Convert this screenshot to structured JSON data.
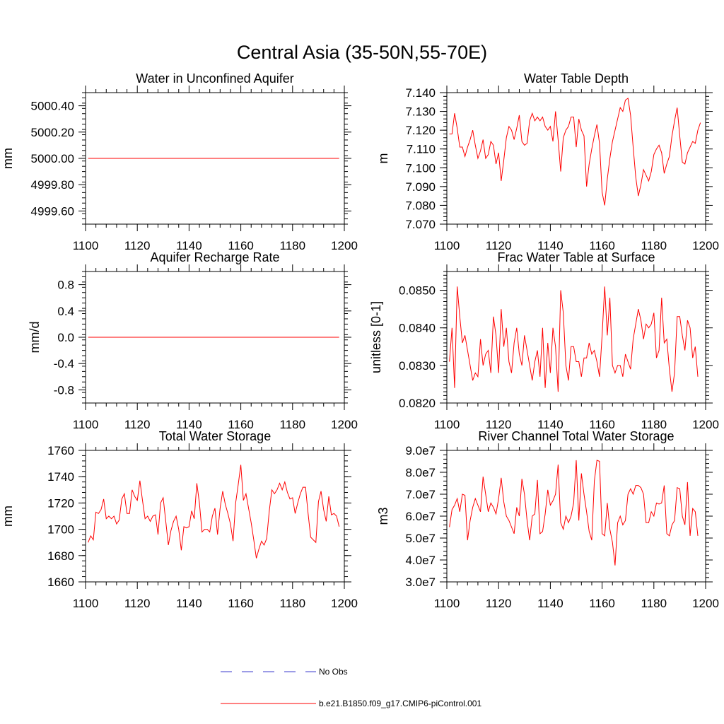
{
  "figure_title": "Central Asia (35-50N,55-70E)",
  "colors": {
    "model": "#ff0000",
    "obs": "#3a3acc",
    "frame": "#000000"
  },
  "legend": [
    {
      "label": "No Obs",
      "style": "dashed",
      "color": "#3a3acc"
    },
    {
      "label": "b.e21.B1850.f09_g17.CMIP6-piControl.001",
      "style": "solid",
      "color": "#ff0000"
    }
  ],
  "chart_data": [
    {
      "type": "line",
      "title": "Water in Unconfined Aquifer",
      "ylabel": "mm",
      "xlim": [
        1100,
        1200
      ],
      "ylim": [
        4999.5,
        5000.5
      ],
      "xticks": [
        1100,
        1120,
        1140,
        1160,
        1180,
        1200
      ],
      "xticklabels": [
        "1100",
        "1120",
        "1140",
        "1160",
        "1180",
        "1200"
      ],
      "yticks": [
        4999.6,
        4999.8,
        5000.0,
        5000.2,
        5000.4
      ],
      "yticklabels": [
        "4999.60",
        "4999.80",
        "5000.00",
        "5000.20",
        "5000.40"
      ],
      "yminor_step": 0.04,
      "x_start": 1101,
      "values": [
        5000.0,
        5000.0
      ],
      "x": [
        1101,
        1198
      ]
    },
    {
      "type": "line",
      "title": "Water Table Depth",
      "ylabel": "m",
      "xlim": [
        1100,
        1200
      ],
      "ylim": [
        7.07,
        7.14
      ],
      "xticks": [
        1100,
        1120,
        1140,
        1160,
        1180,
        1200
      ],
      "xticklabels": [
        "1100",
        "1120",
        "1140",
        "1160",
        "1180",
        "1200"
      ],
      "yticks": [
        7.07,
        7.08,
        7.09,
        7.1,
        7.11,
        7.12,
        7.13,
        7.14
      ],
      "yticklabels": [
        "7.070",
        "7.080",
        "7.090",
        "7.100",
        "7.110",
        "7.120",
        "7.130",
        "7.140"
      ],
      "yminor_step": 0.002,
      "x_start": 1101,
      "values": [
        7.118,
        7.118,
        7.129,
        7.121,
        7.111,
        7.111,
        7.106,
        7.111,
        7.115,
        7.12,
        7.112,
        7.105,
        7.109,
        7.115,
        7.105,
        7.107,
        7.114,
        7.112,
        7.102,
        7.108,
        7.093,
        7.104,
        7.116,
        7.122,
        7.12,
        7.115,
        7.121,
        7.128,
        7.114,
        7.112,
        7.113,
        7.125,
        7.129,
        7.125,
        7.127,
        7.125,
        7.127,
        7.122,
        7.12,
        7.122,
        7.114,
        7.13,
        7.115,
        7.098,
        7.116,
        7.12,
        7.122,
        7.127,
        7.127,
        7.111,
        7.126,
        7.12,
        7.117,
        7.09,
        7.102,
        7.11,
        7.117,
        7.123,
        7.113,
        7.087,
        7.08,
        7.094,
        7.105,
        7.114,
        7.12,
        7.126,
        7.132,
        7.13,
        7.136,
        7.137,
        7.128,
        7.111,
        7.095,
        7.085,
        7.091,
        7.099,
        7.096,
        7.093,
        7.098,
        7.107,
        7.11,
        7.112,
        7.108,
        7.097,
        7.102,
        7.106,
        7.117,
        7.125,
        7.132,
        7.117,
        7.103,
        7.102,
        7.108,
        7.111,
        7.114,
        7.113,
        7.12,
        7.124
      ]
    },
    {
      "type": "line",
      "title": "Aquifer Recharge Rate",
      "ylabel": "mm/d",
      "xlim": [
        1100,
        1200
      ],
      "ylim": [
        -1.0,
        1.0
      ],
      "xticks": [
        1100,
        1120,
        1140,
        1160,
        1180,
        1200
      ],
      "xticklabels": [
        "1100",
        "1120",
        "1140",
        "1160",
        "1180",
        "1200"
      ],
      "yticks": [
        -0.8,
        -0.4,
        0.0,
        0.4,
        0.8
      ],
      "yticklabels": [
        "-0.8",
        "-0.4",
        "0.0",
        "0.4",
        "0.8"
      ],
      "yminor_step": 0.08,
      "values": [
        0.0,
        0.0
      ],
      "x": [
        1101,
        1198
      ]
    },
    {
      "type": "line",
      "title": "Frac Water Table at Surface",
      "ylabel": "unitless [0-1]",
      "xlim": [
        1100,
        1200
      ],
      "ylim": [
        0.082,
        0.0855
      ],
      "xticks": [
        1100,
        1120,
        1140,
        1160,
        1180,
        1200
      ],
      "xticklabels": [
        "1100",
        "1120",
        "1140",
        "1160",
        "1180",
        "1200"
      ],
      "yticks": [
        0.082,
        0.083,
        0.084,
        0.085
      ],
      "yticklabels": [
        "0.0820",
        "0.0830",
        "0.0840",
        "0.0850"
      ],
      "yminor_step": 0.0001,
      "x_start": 1101,
      "values": [
        0.0831,
        0.084,
        0.0824,
        0.0851,
        0.0843,
        0.0836,
        0.0838,
        0.0834,
        0.083,
        0.0826,
        0.0828,
        0.0827,
        0.0837,
        0.083,
        0.0833,
        0.0834,
        0.0828,
        0.0843,
        0.0838,
        0.0828,
        0.0845,
        0.0835,
        0.084,
        0.0831,
        0.0828,
        0.0836,
        0.084,
        0.0833,
        0.083,
        0.0838,
        0.0834,
        0.083,
        0.0826,
        0.0831,
        0.0834,
        0.0827,
        0.084,
        0.0824,
        0.0836,
        0.0828,
        0.084,
        0.0835,
        0.0823,
        0.085,
        0.0844,
        0.083,
        0.0826,
        0.0835,
        0.0835,
        0.0831,
        0.0831,
        0.0827,
        0.0832,
        0.0832,
        0.0836,
        0.0833,
        0.0834,
        0.0831,
        0.0827,
        0.0838,
        0.0851,
        0.0838,
        0.0848,
        0.083,
        0.0828,
        0.083,
        0.083,
        0.0827,
        0.0833,
        0.0831,
        0.0829,
        0.0837,
        0.0841,
        0.0845,
        0.0842,
        0.0837,
        0.0841,
        0.084,
        0.0841,
        0.0844,
        0.0832,
        0.0834,
        0.0848,
        0.0836,
        0.0837,
        0.0829,
        0.0823,
        0.0828,
        0.0843,
        0.0843,
        0.0838,
        0.0834,
        0.0842,
        0.084,
        0.0832,
        0.0835,
        0.0827
      ]
    },
    {
      "type": "line",
      "title": "Total Water Storage",
      "ylabel": "mm",
      "xlim": [
        1100,
        1200
      ],
      "ylim": [
        1660,
        1760
      ],
      "xticks": [
        1100,
        1120,
        1140,
        1160,
        1180,
        1200
      ],
      "xticklabels": [
        "1100",
        "1120",
        "1140",
        "1160",
        "1180",
        "1200"
      ],
      "yticks": [
        1660,
        1680,
        1700,
        1720,
        1740,
        1760
      ],
      "yticklabels": [
        "1660",
        "1680",
        "1700",
        "1720",
        "1740",
        "1760"
      ],
      "yminor_step": 4,
      "x_start": 1101,
      "values": [
        1690,
        1695,
        1692,
        1713,
        1712,
        1715,
        1723,
        1708,
        1710,
        1708,
        1710,
        1704,
        1707,
        1723,
        1727,
        1712,
        1712,
        1730,
        1725,
        1722,
        1737,
        1722,
        1708,
        1710,
        1706,
        1710,
        1711,
        1696,
        1720,
        1724,
        1706,
        1688,
        1699,
        1706,
        1710,
        1700,
        1684,
        1702,
        1701,
        1702,
        1714,
        1708,
        1735,
        1720,
        1698,
        1700,
        1700,
        1698,
        1710,
        1716,
        1696,
        1716,
        1729,
        1719,
        1712,
        1704,
        1691,
        1720,
        1734,
        1749,
        1722,
        1727,
        1716,
        1705,
        1692,
        1678,
        1685,
        1691,
        1688,
        1693,
        1714,
        1730,
        1727,
        1730,
        1735,
        1730,
        1736,
        1728,
        1723,
        1724,
        1712,
        1720,
        1727,
        1732,
        1732,
        1712,
        1694,
        1692,
        1690,
        1721,
        1729,
        1715,
        1706,
        1725,
        1711,
        1712,
        1710,
        1702
      ]
    },
    {
      "type": "line",
      "title": "River Channel Total Water Storage",
      "ylabel": "m3",
      "xlim": [
        1100,
        1200
      ],
      "ylim": [
        30000000,
        90000000
      ],
      "xticks": [
        1100,
        1120,
        1140,
        1160,
        1180,
        1200
      ],
      "xticklabels": [
        "1100",
        "1120",
        "1140",
        "1160",
        "1180",
        "1200"
      ],
      "yticks": [
        30000000,
        40000000,
        50000000,
        60000000,
        70000000,
        80000000,
        90000000
      ],
      "yticklabels": [
        "3.0e7",
        "4.0e7",
        "5.0e7",
        "6.0e7",
        "7.0e7",
        "8.0e7",
        "9.0e7"
      ],
      "yminor_step": 2000000,
      "x_start": 1101,
      "values": [
        55000000,
        63000000,
        65000000,
        68000000,
        62000000,
        70000000,
        69500000,
        49000000,
        58000000,
        64000000,
        68000000,
        65000000,
        62000000,
        78000000,
        70000000,
        62000000,
        66000000,
        64000000,
        61000000,
        68000000,
        77500000,
        66500000,
        60000000,
        58000000,
        55000000,
        52000000,
        64000000,
        60000000,
        77000000,
        70000000,
        58000000,
        49000000,
        60000000,
        61000000,
        76500000,
        52000000,
        53000000,
        61000000,
        72000000,
        65000000,
        67000000,
        70000000,
        83500000,
        57000000,
        54000000,
        60000000,
        57000000,
        60000000,
        66000000,
        85500000,
        58000000,
        79500000,
        70000000,
        62000000,
        53000000,
        49000000,
        76000000,
        85500000,
        85000000,
        52000000,
        51000000,
        66000000,
        54000000,
        48000000,
        37500000,
        57000000,
        60000000,
        56000000,
        58000000,
        70000000,
        72500000,
        70000000,
        74000000,
        74000000,
        73000000,
        70000000,
        57000000,
        57000000,
        62000000,
        60000000,
        66000000,
        65500000,
        66000000,
        74000000,
        52000000,
        51000000,
        56000000,
        58000000,
        73000000,
        72500000,
        60000000,
        56000000,
        75500000,
        51000000,
        63500000,
        62000000,
        51000000
      ]
    }
  ]
}
